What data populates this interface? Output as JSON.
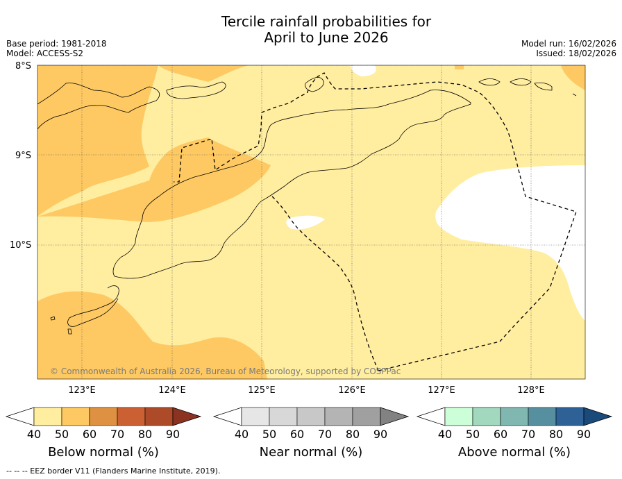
{
  "title_line1": "Tercile rainfall probabilities for",
  "title_line2": "April to June 2026",
  "meta": {
    "base_period": "Base period: 1981-2018",
    "model": "Model: ACCESS-S2",
    "model_run": "Model run: 16/02/2026",
    "issued": "Issued: 18/02/2026"
  },
  "lat_labels": [
    "8°S",
    "9°S",
    "10°S"
  ],
  "lon_labels": [
    "123°E",
    "124°E",
    "125°E",
    "126°E",
    "127°E",
    "128°E"
  ],
  "copyright": "© Commonwealth of Australia 2026, Bureau of Meteorology, supported by COSPPac",
  "legend": {
    "below": {
      "title": "Below normal (%)",
      "ticks": [
        "40",
        "50",
        "60",
        "70",
        "80",
        "90"
      ],
      "colors": [
        "#ffeda0",
        "#fec962",
        "#df9142",
        "#cb6032",
        "#ad4a28",
        "#8b3220"
      ]
    },
    "near": {
      "title": "Near normal (%)",
      "ticks": [
        "40",
        "50",
        "60",
        "70",
        "80",
        "90"
      ],
      "colors": [
        "#e6e6e6",
        "#d8d8d8",
        "#c8c8c8",
        "#b4b4b4",
        "#a0a0a0",
        "#828282"
      ]
    },
    "above": {
      "title": "Above normal (%)",
      "ticks": [
        "40",
        "50",
        "60",
        "70",
        "80",
        "90"
      ],
      "colors": [
        "#ccffd7",
        "#a1d8be",
        "#80b7b0",
        "#568f9f",
        "#2e6296",
        "#1a4a7a"
      ]
    }
  },
  "footer": "--  --  -- EEZ border V11 (Flanders Marine Institute, 2019)."
}
